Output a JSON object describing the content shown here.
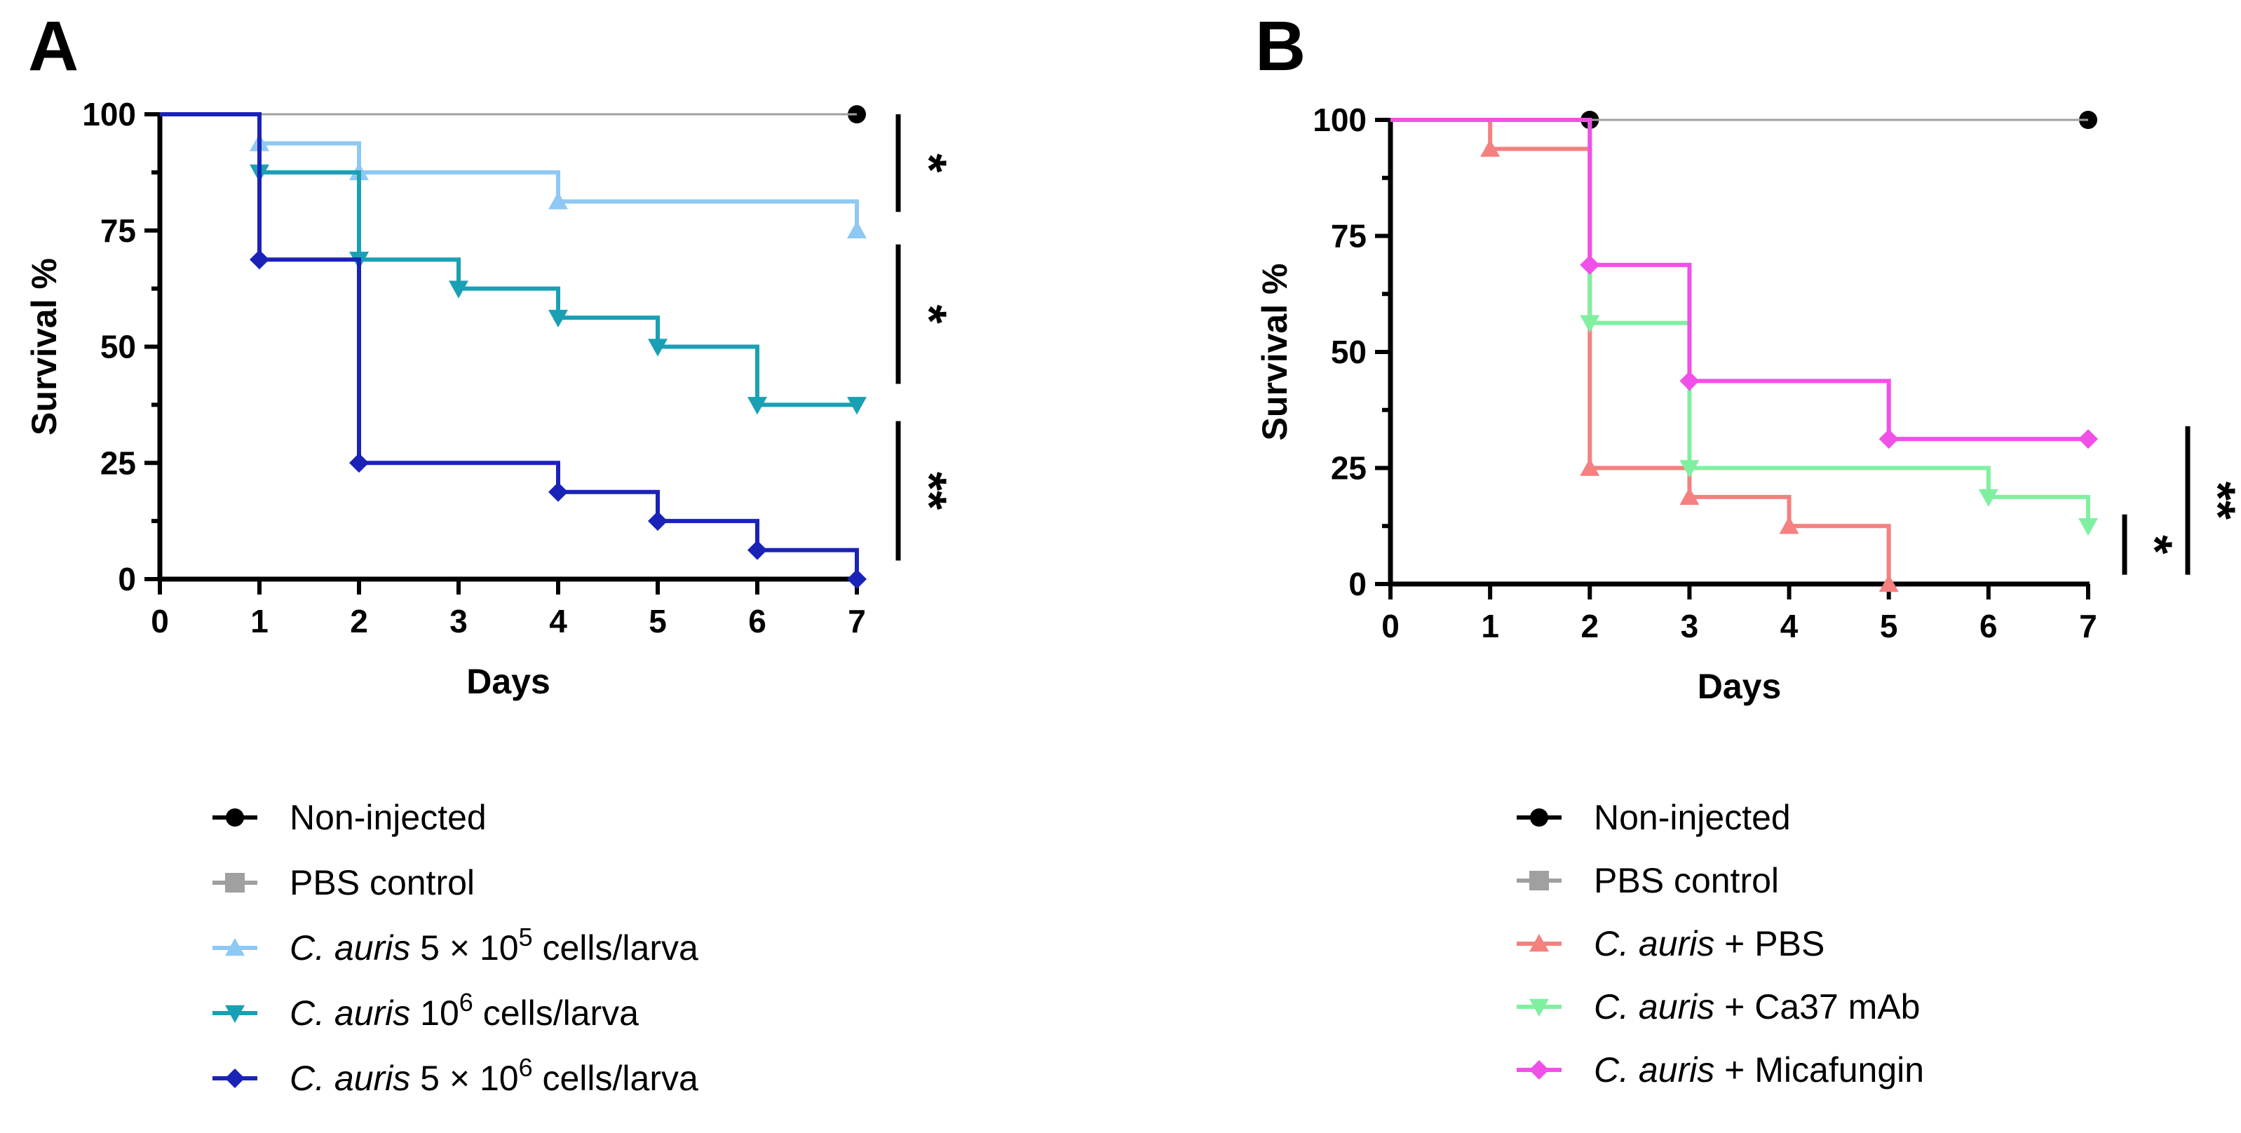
{
  "chart_data": [
    {
      "type": "line",
      "subtype": "kaplan-meier",
      "panel": "A",
      "xlabel": "Days",
      "ylabel": "Survival %",
      "xlim": [
        0,
        7
      ],
      "ylim": [
        0,
        100
      ],
      "xticks": [
        0,
        1,
        2,
        3,
        4,
        5,
        6,
        7
      ],
      "yticks": [
        0,
        25,
        50,
        75,
        100
      ],
      "series": [
        {
          "name": "Non-injected",
          "color": "#000000",
          "marker": "circle",
          "steps": [
            [
              0,
              100
            ],
            [
              7,
              100
            ]
          ],
          "markers": [
            [
              7,
              100
            ]
          ]
        },
        {
          "name": "PBS control",
          "color": "#a0a0a0",
          "marker": "square",
          "steps": [
            [
              0,
              100
            ],
            [
              7,
              100
            ]
          ],
          "markers": []
        },
        {
          "name": "C. auris 5 × 10^5 cells/larva",
          "color": "#8ec8f4",
          "marker": "triangle-up",
          "steps": [
            [
              0,
              100
            ],
            [
              1,
              93.75
            ],
            [
              2,
              87.5
            ],
            [
              4,
              81.25
            ],
            [
              7,
              75
            ]
          ],
          "markers": [
            [
              1,
              93.75
            ],
            [
              2,
              87.5
            ],
            [
              4,
              81.25
            ],
            [
              7,
              75
            ]
          ]
        },
        {
          "name": "C. auris 10^6 cells/larva",
          "color": "#1aa0b4",
          "marker": "triangle-down",
          "steps": [
            [
              0,
              100
            ],
            [
              1,
              87.5
            ],
            [
              2,
              68.75
            ],
            [
              3,
              62.5
            ],
            [
              4,
              56.25
            ],
            [
              5,
              50
            ],
            [
              6,
              37.5
            ],
            [
              7,
              37.5
            ]
          ],
          "markers": [
            [
              1,
              87.5
            ],
            [
              2,
              68.75
            ],
            [
              3,
              62.5
            ],
            [
              4,
              56.25
            ],
            [
              5,
              50
            ],
            [
              6,
              37.5
            ],
            [
              7,
              37.5
            ]
          ]
        },
        {
          "name": "C. auris 5 × 10^6 cells/larva",
          "color": "#1a22b8",
          "marker": "diamond",
          "steps": [
            [
              0,
              100
            ],
            [
              1,
              68.75
            ],
            [
              2,
              25
            ],
            [
              4,
              18.75
            ],
            [
              5,
              12.5
            ],
            [
              6,
              6.25
            ],
            [
              7,
              0
            ]
          ],
          "markers": [
            [
              1,
              68.75
            ],
            [
              2,
              25
            ],
            [
              4,
              18.75
            ],
            [
              5,
              12.5
            ],
            [
              6,
              6.25
            ],
            [
              7,
              0
            ]
          ]
        }
      ],
      "significance": [
        {
          "label": "*",
          "y_from": 100,
          "y_to": 79
        },
        {
          "label": "*",
          "y_from": 72,
          "y_to": 42
        },
        {
          "label": "**",
          "y_from": 34,
          "y_to": 4
        }
      ],
      "legend": [
        {
          "parts": [
            [
              "Non-injected",
              false
            ]
          ],
          "color": "#000000",
          "marker": "circle"
        },
        {
          "parts": [
            [
              "PBS control",
              false
            ]
          ],
          "color": "#a0a0a0",
          "marker": "square"
        },
        {
          "parts": [
            [
              "C. auris",
              true
            ],
            [
              " 5 × 10",
              false
            ]
          ],
          "sup": "5",
          "tail": " cells/larva",
          "color": "#8ec8f4",
          "marker": "triangle-up"
        },
        {
          "parts": [
            [
              "C. auris",
              true
            ],
            [
              " 10",
              false
            ]
          ],
          "sup": "6",
          "tail": " cells/larva",
          "color": "#1aa0b4",
          "marker": "triangle-down"
        },
        {
          "parts": [
            [
              "C. auris",
              true
            ],
            [
              " 5 × 10",
              false
            ]
          ],
          "sup": "6",
          "tail": " cells/larva",
          "color": "#1a22b8",
          "marker": "diamond"
        }
      ]
    },
    {
      "type": "line",
      "subtype": "kaplan-meier",
      "panel": "B",
      "xlabel": "Days",
      "ylabel": "Survival %",
      "xlim": [
        0,
        7
      ],
      "ylim": [
        0,
        100
      ],
      "xticks": [
        0,
        1,
        2,
        3,
        4,
        5,
        6,
        7
      ],
      "yticks": [
        0,
        25,
        50,
        75,
        100
      ],
      "series": [
        {
          "name": "Non-injected",
          "color": "#000000",
          "marker": "circle",
          "steps": [
            [
              0,
              100
            ],
            [
              7,
              100
            ]
          ],
          "markers": [
            [
              2,
              100
            ],
            [
              7,
              100
            ]
          ]
        },
        {
          "name": "PBS control",
          "color": "#a0a0a0",
          "marker": "square",
          "steps": [
            [
              0,
              100
            ],
            [
              7,
              100
            ]
          ],
          "markers": []
        },
        {
          "name": "C. auris + PBS",
          "color": "#f48080",
          "marker": "triangle-up",
          "steps": [
            [
              0,
              100
            ],
            [
              1,
              93.75
            ],
            [
              2,
              25
            ],
            [
              3,
              18.75
            ],
            [
              4,
              12.5
            ],
            [
              5,
              0
            ]
          ],
          "markers": [
            [
              1,
              93.75
            ],
            [
              2,
              25
            ],
            [
              3,
              18.75
            ],
            [
              4,
              12.5
            ],
            [
              5,
              0
            ]
          ]
        },
        {
          "name": "C. auris + Ca37 mAb",
          "color": "#80f0a0",
          "marker": "triangle-down",
          "steps": [
            [
              0,
              100
            ],
            [
              2,
              56.25
            ],
            [
              3,
              25
            ],
            [
              6,
              18.75
            ],
            [
              7,
              12.5
            ]
          ],
          "markers": [
            [
              2,
              56.25
            ],
            [
              3,
              25
            ],
            [
              6,
              18.75
            ],
            [
              7,
              12.5
            ]
          ]
        },
        {
          "name": "C. auris + Micafungin",
          "color": "#f050e8",
          "marker": "diamond",
          "steps": [
            [
              0,
              100
            ],
            [
              2,
              68.75
            ],
            [
              3,
              43.75
            ],
            [
              5,
              31.25
            ],
            [
              7,
              31.25
            ]
          ],
          "markers": [
            [
              2,
              68.75
            ],
            [
              3,
              43.75
            ],
            [
              5,
              31.25
            ],
            [
              7,
              31.25
            ]
          ]
        }
      ],
      "significance": [
        {
          "label": "*",
          "y_from": 15,
          "y_to": 2
        },
        {
          "label": "**",
          "y_from": 34,
          "y_to": 2
        }
      ],
      "legend": [
        {
          "parts": [
            [
              "Non-injected",
              false
            ]
          ],
          "color": "#000000",
          "marker": "circle"
        },
        {
          "parts": [
            [
              "PBS control",
              false
            ]
          ],
          "color": "#a0a0a0",
          "marker": "square"
        },
        {
          "parts": [
            [
              "C. auris",
              true
            ],
            [
              " + PBS",
              false
            ]
          ],
          "color": "#f48080",
          "marker": "triangle-up"
        },
        {
          "parts": [
            [
              "C. auris",
              true
            ],
            [
              " + Ca37 mAb",
              false
            ]
          ],
          "color": "#80f0a0",
          "marker": "triangle-down"
        },
        {
          "parts": [
            [
              "C. auris",
              true
            ],
            [
              " + Micafungin",
              false
            ]
          ],
          "color": "#f050e8",
          "marker": "diamond"
        }
      ]
    }
  ]
}
